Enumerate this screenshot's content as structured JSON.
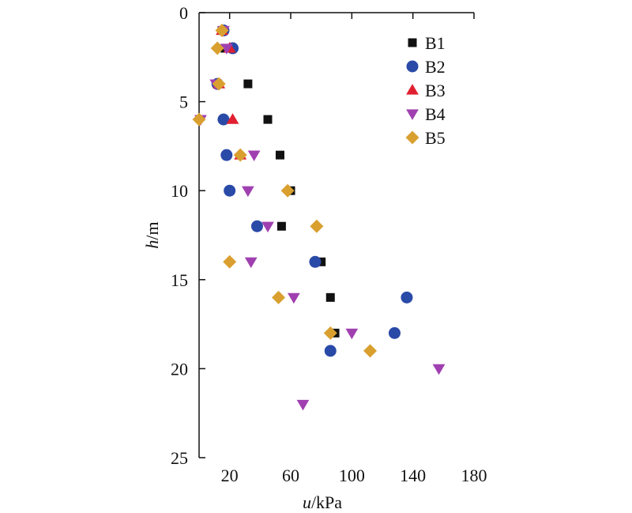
{
  "chart_data": {
    "type": "scatter",
    "title": "",
    "xlabel": {
      "var": "u",
      "unit": "/kPa"
    },
    "ylabel": {
      "var": "h",
      "unit": "/m"
    },
    "xlim": [
      0,
      180
    ],
    "ylim": [
      0,
      25
    ],
    "y_inverted": true,
    "x_axis_position": "top",
    "x_tick_labels_position": "bottom",
    "x_ticks": [
      20,
      60,
      100,
      140,
      180
    ],
    "y_ticks": [
      0,
      5,
      10,
      15,
      20,
      25
    ],
    "grid": false,
    "legend": {
      "position": "top-right"
    },
    "series": [
      {
        "name": "B1",
        "marker": "square",
        "color": "#111111",
        "points": [
          [
            15,
            1
          ],
          [
            17,
            2
          ],
          [
            32,
            4
          ],
          [
            45,
            6
          ],
          [
            53,
            8
          ],
          [
            60,
            10
          ],
          [
            54,
            12
          ],
          [
            80,
            14
          ],
          [
            86,
            16
          ],
          [
            89,
            18
          ]
        ]
      },
      {
        "name": "B2",
        "marker": "circle",
        "color": "#2a4aa8",
        "points": [
          [
            16,
            1
          ],
          [
            22,
            2
          ],
          [
            12,
            4
          ],
          [
            16,
            6
          ],
          [
            18,
            8
          ],
          [
            20,
            10
          ],
          [
            38,
            12
          ],
          [
            76,
            14
          ],
          [
            136,
            16
          ],
          [
            128,
            18
          ],
          [
            86,
            19
          ]
        ]
      },
      {
        "name": "B3",
        "marker": "triangle-up",
        "color": "#e02030",
        "points": [
          [
            15,
            1
          ],
          [
            20,
            2
          ],
          [
            13,
            4
          ],
          [
            22,
            6
          ],
          [
            27,
            8
          ]
        ]
      },
      {
        "name": "B4",
        "marker": "triangle-down",
        "color": "#a040b0",
        "points": [
          [
            16,
            1
          ],
          [
            18,
            2
          ],
          [
            11,
            4
          ],
          [
            1,
            6
          ],
          [
            36,
            8
          ],
          [
            32,
            10
          ],
          [
            45,
            12
          ],
          [
            34,
            14
          ],
          [
            62,
            16
          ],
          [
            100,
            18
          ],
          [
            157,
            20
          ],
          [
            68,
            22
          ]
        ]
      },
      {
        "name": "B5",
        "marker": "diamond",
        "color": "#d9a030",
        "points": [
          [
            15,
            1
          ],
          [
            12,
            2
          ],
          [
            13,
            4
          ],
          [
            0,
            6
          ],
          [
            27,
            8
          ],
          [
            58,
            10
          ],
          [
            77,
            12
          ],
          [
            20,
            14
          ],
          [
            52,
            16
          ],
          [
            86,
            18
          ],
          [
            112,
            19
          ]
        ]
      }
    ]
  }
}
